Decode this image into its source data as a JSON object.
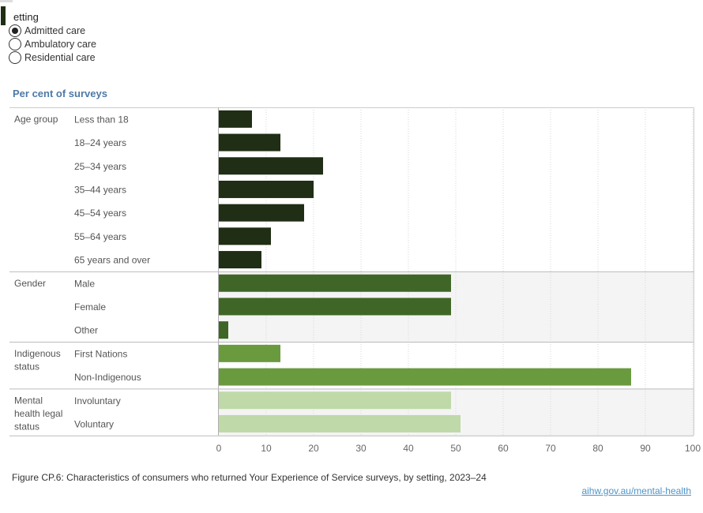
{
  "filter": {
    "title": "etting",
    "options": [
      "Admitted care",
      "Ambulatory care",
      "Residential care"
    ],
    "selected_index": 0
  },
  "footer": {
    "caption": "Figure CP.6: Characteristics of consumers who returned Your Experience of Service surveys, by setting, 2023–24",
    "link": "aihw.gov.au/mental-health"
  },
  "chart_data": {
    "type": "bar",
    "orientation": "horizontal",
    "title": "",
    "xlabel": "",
    "ylabel": "Per cent of surveys",
    "xlim": [
      0,
      100
    ],
    "xticks": [
      0,
      10,
      20,
      30,
      40,
      50,
      60,
      70,
      80,
      90,
      100
    ],
    "grid": true,
    "groups": [
      {
        "name": "Age group",
        "color": "#1f2e14",
        "shaded": false,
        "categories": [
          "Less than 18",
          "18–24 years",
          "25–34 years",
          "35–44 years",
          "45–54 years",
          "55–64 years",
          "65 years and over"
        ],
        "values": [
          7,
          13,
          22,
          20,
          18,
          11,
          9
        ]
      },
      {
        "name": "Gender",
        "color": "#3f6626",
        "shaded": true,
        "categories": [
          "Male",
          "Female",
          "Other"
        ],
        "values": [
          49,
          49,
          2
        ]
      },
      {
        "name": "Indigenous status",
        "color": "#6a9a3e",
        "shaded": false,
        "categories": [
          "First Nations",
          "Non-Indigenous"
        ],
        "values": [
          13,
          87
        ]
      },
      {
        "name": "Mental health legal status",
        "color": "#bfd9a8",
        "shaded": true,
        "categories": [
          "Involuntary",
          "Voluntary"
        ],
        "values": [
          49,
          51
        ]
      }
    ]
  }
}
